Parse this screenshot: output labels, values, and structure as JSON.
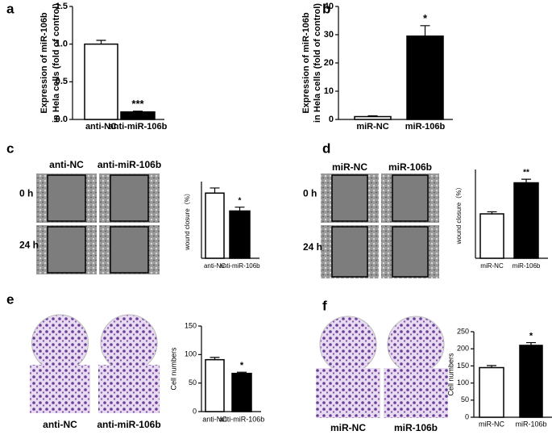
{
  "chart_data": [
    {
      "type": "bar",
      "panel": "a",
      "ylabel": [
        "Expression of miR-106b",
        "in Hela cells (fold of control)"
      ],
      "categories": [
        "anti-NC",
        "anti-miR-106b"
      ],
      "values": [
        1.0,
        0.1
      ],
      "errors": [
        0.05,
        0.01
      ],
      "colors": [
        "#ffffff",
        "#000000"
      ],
      "value_annotations": [
        null,
        "***"
      ],
      "ylim": [
        0,
        1.5
      ],
      "yticks": [
        {
          "value": 0,
          "label": "0.0"
        },
        {
          "value": 0.5,
          "label": "0.5"
        },
        {
          "value": 1,
          "label": "1.0"
        },
        {
          "value": 1.5,
          "label": "1.5"
        }
      ]
    },
    {
      "type": "bar",
      "panel": "b",
      "ylabel": [
        "Expression of  miR-106b",
        "in Hela cells (fold of control)"
      ],
      "categories": [
        "miR-NC",
        "miR-106b"
      ],
      "values": [
        1,
        29.5
      ],
      "errors": [
        0.3,
        3.7
      ],
      "colors": [
        "#ffffff",
        "#000000"
      ],
      "value_annotations": [
        null,
        "*"
      ],
      "ylim": [
        0,
        40
      ],
      "yticks": [
        0,
        10,
        20,
        30,
        40
      ]
    },
    {
      "type": "bar",
      "panel": "c",
      "ylabel": [
        "wound closure（%）"
      ],
      "image_columns": [
        "anti-NC",
        "anti-miR-106b"
      ],
      "image_rows": [
        "0 h",
        "24 h"
      ],
      "categories": [
        "anti-NC",
        "anti-miR-106b"
      ],
      "values": [
        25.5,
        18.5
      ],
      "errors": [
        2,
        1.5
      ],
      "colors": [
        "#ffffff",
        "#000000"
      ],
      "value_annotations": [
        null,
        "*"
      ],
      "ylim": [
        0,
        30
      ]
    },
    {
      "type": "bar",
      "panel": "d",
      "ylabel": [
        "wound closure（%）"
      ],
      "image_columns": [
        "miR-NC",
        "miR-106b"
      ],
      "image_rows": [
        "0 h",
        "24 h"
      ],
      "categories": [
        "miR-NC",
        "miR-106b"
      ],
      "values": [
        15,
        25.5
      ],
      "errors": [
        0.7,
        1.2
      ],
      "colors": [
        "#ffffff",
        "#000000"
      ],
      "value_annotations": [
        null,
        "**"
      ],
      "ylim": [
        0,
        30
      ]
    },
    {
      "type": "bar",
      "panel": "e",
      "ylabel": [
        "Cell numbers"
      ],
      "image_columns": [
        "anti-NC",
        "anti-miR-106b"
      ],
      "categories": [
        "anti-NC",
        "anti-miR-106b"
      ],
      "values": [
        91,
        67
      ],
      "errors": [
        4,
        2
      ],
      "colors": [
        "#ffffff",
        "#000000"
      ],
      "value_annotations": [
        null,
        "*"
      ],
      "ylim": [
        0,
        150
      ],
      "yticks": [
        0,
        50,
        100,
        150
      ]
    },
    {
      "type": "bar",
      "panel": "f",
      "ylabel": [
        "Cell numbers"
      ],
      "image_columns": [
        "miR-NC",
        "miR-106b"
      ],
      "categories": [
        "miR-NC",
        "miR-106b"
      ],
      "values": [
        145,
        210
      ],
      "errors": [
        6,
        8
      ],
      "colors": [
        "#ffffff",
        "#000000"
      ],
      "value_annotations": [
        null,
        "*"
      ],
      "ylim": [
        0,
        250
      ],
      "yticks": [
        0,
        50,
        100,
        150,
        200,
        250
      ]
    }
  ]
}
